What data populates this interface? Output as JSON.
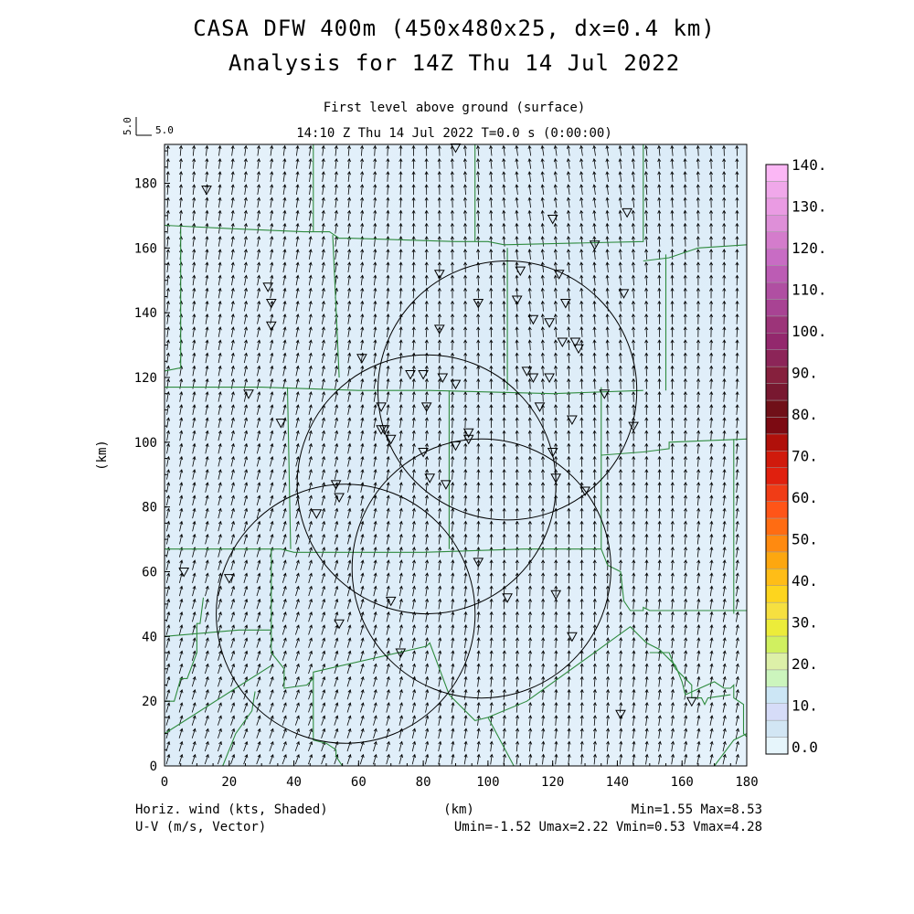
{
  "header": {
    "title_line1": "CASA DFW 400m (450x480x25, dx=0.4 km)",
    "title_line2": "Analysis for 14Z Thu 14 Jul 2022",
    "subtitle": "First level above ground (surface)",
    "time_line": "14:10 Z Thu 14 Jul 2022    T=0.0 s (0:00:00)",
    "ref_vector_x": "5.0",
    "ref_vector_y": "5.0"
  },
  "footer": {
    "left_line1": "Horiz. wind (kts, Shaded)",
    "left_line2": "U-V (m/s, Vector)",
    "center": "(km)",
    "right_line1": "Min=1.55 Max=8.53",
    "right_line2": "Umin=-1.52 Umax=2.22 Vmin=0.53 Vmax=4.28"
  },
  "colors": {
    "background_fill": "#dcecf8",
    "background_fill_light": "#e6f2fb",
    "county_lines": "#2e8b3e",
    "radar_rings": "#000000",
    "vectors": "#000000"
  },
  "chart_data": {
    "type": "heatmap",
    "title": "CASA DFW 400m (450x480x25, dx=0.4 km)",
    "subtitle": "Analysis for 14Z Thu 14 Jul 2022",
    "xlabel": "",
    "ylabel": "(km)",
    "xlim": [
      0,
      180
    ],
    "ylim": [
      0,
      192
    ],
    "x_ticks": [
      0,
      20,
      40,
      60,
      80,
      100,
      120,
      140,
      160,
      180
    ],
    "y_ticks": [
      0,
      20,
      40,
      60,
      80,
      100,
      120,
      140,
      160,
      180
    ],
    "field": "Horiz. wind (kts, Shaded)",
    "vector_field": "U-V (m/s, Vector)",
    "stats": {
      "min": 1.55,
      "max": 8.53,
      "umin": -1.52,
      "umax": 2.22,
      "vmin": 0.53,
      "vmax": 4.28
    },
    "colorbar": {
      "labels": [
        "0.0",
        "10.",
        "20.",
        "30.",
        "40.",
        "50.",
        "60.",
        "70.",
        "80.",
        "90.",
        "100.",
        "110.",
        "120.",
        "130.",
        "140."
      ],
      "colors": [
        "#e6f5fb",
        "#d2e6f4",
        "#d6dcf8",
        "#cce6f5",
        "#ccf5bd",
        "#ddf0a8",
        "#d0f060",
        "#ecec3a",
        "#f6e040",
        "#fdd51e",
        "#ffbd17",
        "#fda70f",
        "#ff8a10",
        "#ff6c12",
        "#ff5518",
        "#f03c16",
        "#e0200e",
        "#d01a0c",
        "#b0100a",
        "#7c0a12",
        "#701018",
        "#781830",
        "#86203d",
        "#8c2558",
        "#93286d",
        "#9c3479",
        "#a84393",
        "#b04fa2",
        "#bc5cb4",
        "#c86cc4",
        "#d47ccc",
        "#de8fd8",
        "#ea9be3",
        "#f0a8ea",
        "#fbb7f5"
      ]
    },
    "radar_rings": [
      {
        "cx": 56,
        "cy": 47,
        "r": 40
      },
      {
        "cx": 81,
        "cy": 87,
        "r": 40
      },
      {
        "cx": 98,
        "cy": 61,
        "r": 40
      },
      {
        "cx": 106,
        "cy": 116,
        "r": 40
      }
    ],
    "stations": [
      [
        13,
        178
      ],
      [
        26,
        115
      ],
      [
        32,
        148
      ],
      [
        33,
        143
      ],
      [
        33,
        136
      ],
      [
        36,
        106
      ],
      [
        6,
        60
      ],
      [
        20,
        58
      ],
      [
        47,
        78
      ],
      [
        53,
        87
      ],
      [
        54,
        83
      ],
      [
        54,
        44
      ],
      [
        61,
        126
      ],
      [
        67,
        111
      ],
      [
        67,
        104
      ],
      [
        68,
        104
      ],
      [
        70,
        101
      ],
      [
        70,
        51
      ],
      [
        73,
        35
      ],
      [
        76,
        121
      ],
      [
        80,
        121
      ],
      [
        80,
        97
      ],
      [
        81,
        111
      ],
      [
        82,
        89
      ],
      [
        85,
        152
      ],
      [
        85,
        135
      ],
      [
        86,
        120
      ],
      [
        87,
        87
      ],
      [
        90,
        118
      ],
      [
        90,
        99
      ],
      [
        90,
        191
      ],
      [
        94,
        103
      ],
      [
        94,
        101
      ],
      [
        97,
        63
      ],
      [
        97,
        143
      ],
      [
        106,
        52
      ],
      [
        109,
        144
      ],
      [
        110,
        153
      ],
      [
        112,
        122
      ],
      [
        114,
        120
      ],
      [
        114,
        138
      ],
      [
        116,
        111
      ],
      [
        119,
        137
      ],
      [
        119,
        120
      ],
      [
        120,
        169
      ],
      [
        120,
        97
      ],
      [
        121,
        89
      ],
      [
        121,
        53
      ],
      [
        122,
        152
      ],
      [
        123,
        131
      ],
      [
        124,
        143
      ],
      [
        127,
        131
      ],
      [
        128,
        129
      ],
      [
        126,
        107
      ],
      [
        126,
        40
      ],
      [
        130,
        85
      ],
      [
        133,
        161
      ],
      [
        136,
        115
      ],
      [
        142,
        146
      ],
      [
        143,
        171
      ],
      [
        145,
        105
      ],
      [
        141,
        16
      ],
      [
        163,
        20
      ]
    ],
    "county_lines": [
      [
        [
          0,
          167
        ],
        [
          20,
          166
        ],
        [
          43,
          165
        ],
        [
          51,
          165
        ],
        [
          54,
          163
        ],
        [
          58,
          163
        ],
        [
          90,
          162
        ],
        [
          100,
          162
        ],
        [
          105,
          161
        ],
        [
          148,
          162
        ],
        [
          148,
          192
        ]
      ],
      [
        [
          46,
          192
        ],
        [
          46,
          165
        ]
      ],
      [
        [
          96,
          192
        ],
        [
          96,
          162
        ]
      ],
      [
        [
          148,
          156
        ],
        [
          156,
          157
        ],
        [
          165,
          160
        ],
        [
          180,
          161
        ]
      ],
      [
        [
          5,
          166
        ],
        [
          5,
          123
        ],
        [
          0,
          122
        ]
      ],
      [
        [
          52,
          164
        ],
        [
          54,
          120
        ]
      ],
      [
        [
          0,
          117
        ],
        [
          30,
          117
        ],
        [
          60,
          116
        ],
        [
          82,
          116
        ],
        [
          120,
          115
        ],
        [
          148,
          116
        ]
      ],
      [
        [
          106,
          160
        ],
        [
          106,
          116
        ]
      ],
      [
        [
          155,
          158
        ],
        [
          155,
          116
        ]
      ],
      [
        [
          38,
          117
        ],
        [
          39,
          67
        ]
      ],
      [
        [
          0,
          67
        ],
        [
          23,
          67
        ],
        [
          36,
          67
        ],
        [
          40,
          66
        ],
        [
          80,
          66
        ],
        [
          111,
          67
        ],
        [
          135,
          67
        ]
      ],
      [
        [
          88,
          116
        ],
        [
          88,
          67
        ]
      ],
      [
        [
          135,
          117
        ],
        [
          135,
          67
        ]
      ],
      [
        [
          135,
          96
        ],
        [
          148,
          97
        ],
        [
          156,
          98
        ],
        [
          156,
          100
        ],
        [
          180,
          101
        ]
      ],
      [
        [
          176,
          101
        ],
        [
          176,
          47
        ]
      ],
      [
        [
          33,
          67
        ],
        [
          33,
          35
        ],
        [
          37,
          30
        ],
        [
          37,
          24
        ],
        [
          44,
          25
        ],
        [
          46,
          27
        ],
        [
          46,
          29
        ],
        [
          81,
          37
        ],
        [
          82,
          38
        ],
        [
          88,
          22
        ],
        [
          96,
          14
        ],
        [
          100,
          15
        ],
        [
          112,
          20
        ],
        [
          144,
          43
        ],
        [
          149,
          38
        ],
        [
          153,
          36
        ],
        [
          158,
          31
        ],
        [
          160,
          26
        ],
        [
          161,
          22
        ],
        [
          170,
          26
        ],
        [
          173,
          24
        ],
        [
          175,
          24
        ],
        [
          176,
          25
        ],
        [
          176,
          21
        ],
        [
          179,
          19
        ],
        [
          179,
          10
        ],
        [
          180,
          9
        ]
      ],
      [
        [
          0,
          40
        ],
        [
          23,
          42
        ],
        [
          33,
          42
        ]
      ],
      [
        [
          0,
          10
        ],
        [
          33,
          31
        ]
      ],
      [
        [
          0,
          20
        ],
        [
          3,
          20
        ],
        [
          5,
          27
        ],
        [
          7,
          27
        ],
        [
          10,
          35
        ],
        [
          10,
          44
        ],
        [
          11,
          44
        ],
        [
          12,
          52
        ]
      ],
      [
        [
          18,
          0
        ],
        [
          22,
          10
        ],
        [
          27,
          17
        ],
        [
          28,
          23
        ]
      ],
      [
        [
          46,
          28
        ],
        [
          46,
          8
        ],
        [
          50,
          7
        ],
        [
          53,
          5
        ],
        [
          53,
          3
        ],
        [
          55,
          0
        ]
      ],
      [
        [
          135,
          67
        ],
        [
          137,
          62
        ],
        [
          141,
          60
        ],
        [
          142,
          51
        ],
        [
          144,
          48
        ],
        [
          148,
          48
        ],
        [
          148,
          49
        ],
        [
          150,
          48
        ],
        [
          180,
          48
        ]
      ],
      [
        [
          100,
          15
        ],
        [
          108,
          0
        ]
      ],
      [
        [
          150,
          35
        ],
        [
          156,
          35
        ],
        [
          158,
          30
        ],
        [
          160,
          28
        ],
        [
          163,
          25
        ],
        [
          163,
          21
        ],
        [
          166,
          21
        ],
        [
          167,
          19
        ],
        [
          168,
          21
        ],
        [
          175,
          22
        ]
      ],
      [
        [
          170,
          0
        ],
        [
          176,
          8
        ],
        [
          180,
          10
        ]
      ]
    ]
  }
}
